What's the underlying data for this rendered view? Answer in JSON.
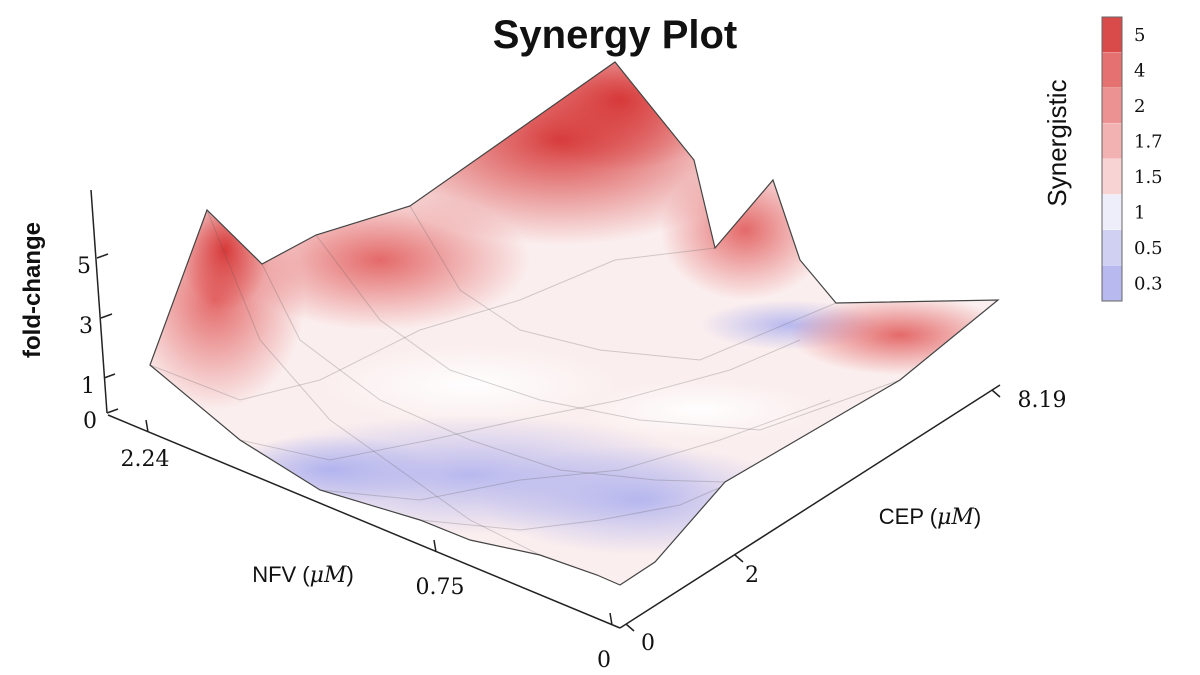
{
  "chart_data": {
    "type": "surface",
    "title": "Synergy Plot",
    "zlabel": "fold-change",
    "x_label_pre": "NFV (",
    "x_label_unit": "μM",
    "x_label_post": ")",
    "y_label_pre": "CEP (",
    "y_label_unit": "μM",
    "y_label_post": ")",
    "x_ticks": [
      "2.24",
      "0.75",
      "0"
    ],
    "y_ticks": [
      "0",
      "2",
      "8.19"
    ],
    "z_ticks": [
      "0",
      "1",
      "3",
      "5"
    ],
    "x_values": [
      "2.24",
      "1.5",
      "0.75",
      "0.25",
      "0"
    ],
    "y_values": [
      "0",
      "1",
      "2",
      "4",
      "8.19"
    ],
    "z_values": [
      [
        1.6,
        4.9,
        2.4,
        3.3,
        5.9
      ],
      [
        1.0,
        1.3,
        2.8,
        2.7,
        3.4
      ],
      [
        0.2,
        0.5,
        0.9,
        3.7,
        1.1
      ],
      [
        0.2,
        0.3,
        0.6,
        1.2,
        2.3
      ],
      [
        0.0,
        0.0,
        0.1,
        0.3,
        0.5
      ]
    ],
    "colorbar": {
      "title": "Synergistic",
      "labels": [
        "5",
        "4",
        "2",
        "1.7",
        "1.5",
        "1",
        "0.5",
        "0.3"
      ],
      "colors": [
        "#d94a4a",
        "#e57171",
        "#ed9292",
        "#f3b2b2",
        "#f8d3d3",
        "#eeeefa",
        "#d0d0f3",
        "#b7b9ef"
      ]
    }
  }
}
